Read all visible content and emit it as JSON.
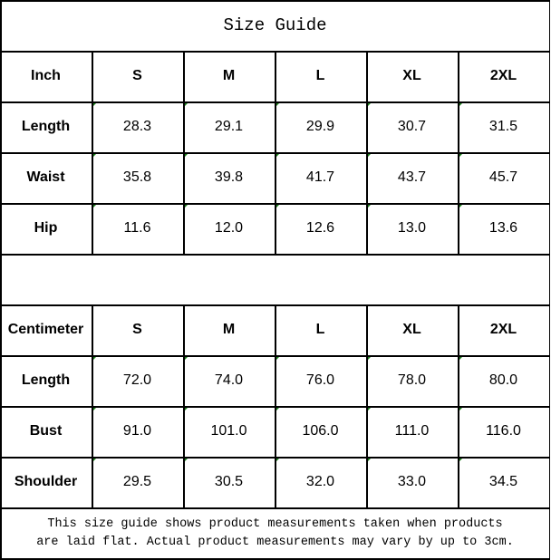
{
  "title": "Size Guide",
  "tables": [
    {
      "headers": [
        "Inch",
        "S",
        "M",
        "L",
        "XL",
        "2XL"
      ],
      "rows": [
        [
          "Length",
          "28.3",
          "29.1",
          "29.9",
          "30.7",
          "31.5"
        ],
        [
          "Waist",
          "35.8",
          "39.8",
          "41.7",
          "43.7",
          "45.7"
        ],
        [
          "Hip",
          "11.6",
          "12.0",
          "12.6",
          "13.0",
          "13.6"
        ]
      ]
    },
    {
      "headers": [
        "Centimeter",
        "S",
        "M",
        "L",
        "XL",
        "2XL"
      ],
      "rows": [
        [
          "Length",
          "72.0",
          "74.0",
          "76.0",
          "78.0",
          "80.0"
        ],
        [
          "Bust",
          "91.0",
          "101.0",
          "106.0",
          "111.0",
          "116.0"
        ],
        [
          "Shoulder",
          "29.5",
          "30.5",
          "32.0",
          "33.0",
          "34.5"
        ]
      ]
    }
  ],
  "note": {
    "line1": "This size guide shows product measurements taken when products",
    "line2": "are laid flat. Actual product measurements may vary by up to 3cm."
  },
  "colors": {
    "border": "#000000",
    "corner_marker": "#1a7f1a"
  }
}
